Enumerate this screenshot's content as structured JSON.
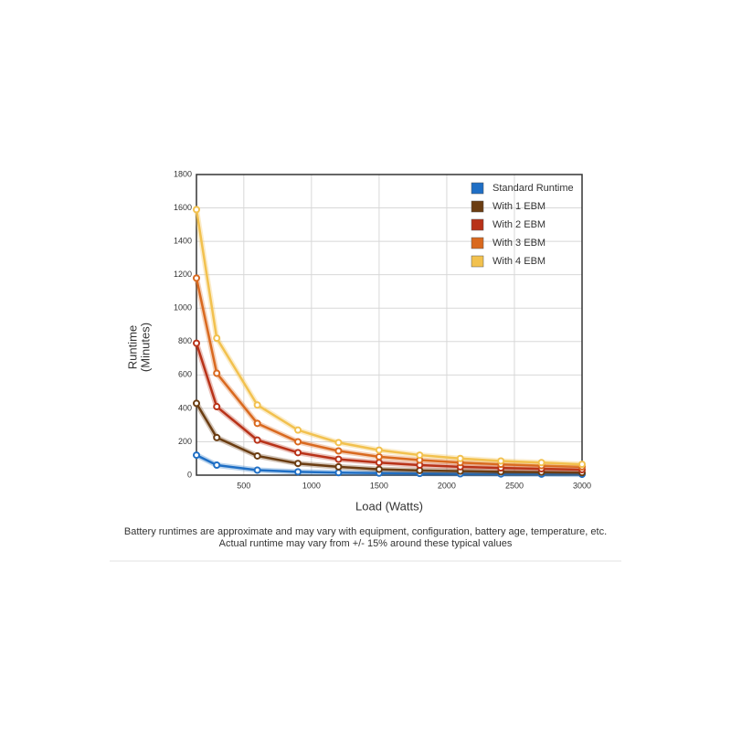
{
  "chart_data": {
    "type": "line",
    "x": [
      150,
      300,
      600,
      900,
      1200,
      1500,
      1800,
      2100,
      2400,
      2700,
      3000
    ],
    "series": [
      {
        "name": "Standard Runtime",
        "color": "#1f6fc5",
        "values": [
          120,
          60,
          30,
          20,
          15,
          12,
          10,
          8,
          7,
          6,
          5
        ]
      },
      {
        "name": "With 1 EBM",
        "color": "#6b3d12",
        "values": [
          430,
          225,
          115,
          70,
          50,
          35,
          28,
          24,
          20,
          18,
          15
        ]
      },
      {
        "name": "With 2 EBM",
        "color": "#b83218",
        "values": [
          790,
          410,
          210,
          135,
          95,
          75,
          60,
          50,
          43,
          38,
          33
        ]
      },
      {
        "name": "With 3 EBM",
        "color": "#d9691f",
        "values": [
          1180,
          610,
          310,
          200,
          145,
          110,
          90,
          75,
          65,
          57,
          50
        ]
      },
      {
        "name": "With 4 EBM",
        "color": "#f2c14e",
        "values": [
          1590,
          820,
          420,
          270,
          195,
          150,
          120,
          100,
          85,
          75,
          65
        ]
      }
    ],
    "xlabel": "Load (Watts)",
    "ylabel": [
      "Runtime",
      "(Minutes)"
    ],
    "xlim": [
      150,
      3000
    ],
    "xticks": [
      500,
      1000,
      1500,
      2000,
      2500,
      3000
    ],
    "ylim": [
      0,
      1800
    ],
    "yticks": [
      0,
      200,
      400,
      600,
      800,
      1000,
      1200,
      1400,
      1600,
      1800
    ],
    "grid": true,
    "legend": "top-right",
    "notes": [
      "Battery runtimes are approximate and may vary with equipment, configuration, battery age, temperature, etc.",
      "Actual runtime may vary from +/- 15% around these typical values"
    ]
  }
}
